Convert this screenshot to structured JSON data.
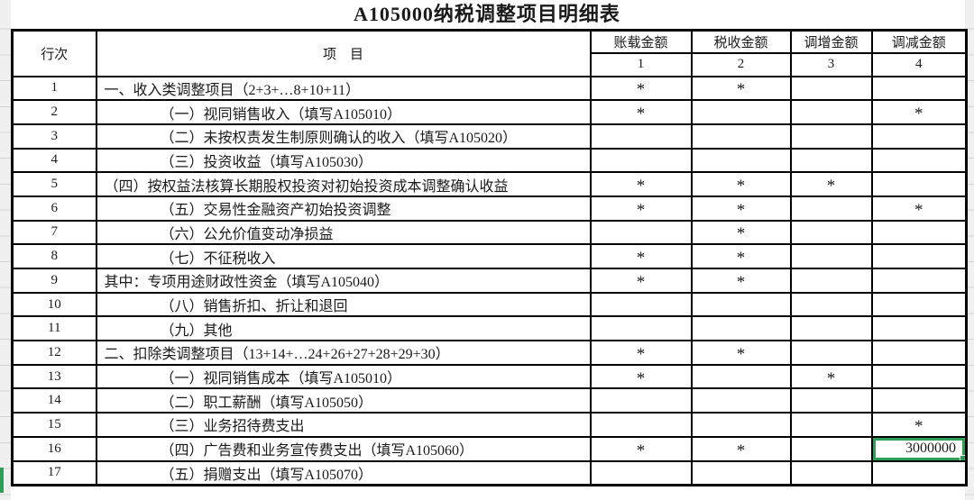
{
  "title": "A105000纳税调整项目明细表",
  "colors": {
    "selection_green": "#2e9e57",
    "table_border": "#000000",
    "edge_strip": "#f0f0f0"
  },
  "table": {
    "headers": {
      "line_no": "行次",
      "item": "项　目",
      "cols": [
        "账载金额",
        "税收金额",
        "调增金额",
        "调减金额"
      ],
      "col_nums": [
        "1",
        "2",
        "3",
        "4"
      ]
    },
    "rows": [
      {
        "line": "1",
        "item": "一、收入类调整项目（2+3+…8+10+11）",
        "indent": false,
        "c1": "*",
        "c2": "*",
        "c3": "",
        "c4": ""
      },
      {
        "line": "2",
        "item": "（一）视同销售收入（填写A105010）",
        "indent": true,
        "c1": "*",
        "c2": "",
        "c3": "",
        "c4": "*"
      },
      {
        "line": "3",
        "item": "（二）未按权责发生制原则确认的收入（填写A105020）",
        "indent": true,
        "c1": "",
        "c2": "",
        "c3": "",
        "c4": ""
      },
      {
        "line": "4",
        "item": "（三）投资收益（填写A105030）",
        "indent": true,
        "c1": "",
        "c2": "",
        "c3": "",
        "c4": ""
      },
      {
        "line": "5",
        "item": "（四）按权益法核算长期股权投资对初始投资成本调整确认收益",
        "indent": false,
        "c1": "*",
        "c2": "*",
        "c3": "*",
        "c4": ""
      },
      {
        "line": "6",
        "item": "（五）交易性金融资产初始投资调整",
        "indent": true,
        "c1": "*",
        "c2": "*",
        "c3": "",
        "c4": "*"
      },
      {
        "line": "7",
        "item": "（六）公允价值变动净损益",
        "indent": true,
        "c1": "",
        "c2": "*",
        "c3": "",
        "c4": ""
      },
      {
        "line": "8",
        "item": "（七）不征税收入",
        "indent": true,
        "c1": "*",
        "c2": "*",
        "c3": "",
        "c4": ""
      },
      {
        "line": "9",
        "item": "其中：专项用途财政性资金（填写A105040）",
        "indent": false,
        "c1": "*",
        "c2": "*",
        "c3": "",
        "c4": ""
      },
      {
        "line": "10",
        "item": "（八）销售折扣、折让和退回",
        "indent": true,
        "c1": "",
        "c2": "",
        "c3": "",
        "c4": ""
      },
      {
        "line": "11",
        "item": "（九）其他",
        "indent": true,
        "c1": "",
        "c2": "",
        "c3": "",
        "c4": ""
      },
      {
        "line": "12",
        "item": "二、扣除类调整项目（13+14+…24+26+27+28+29+30）",
        "indent": false,
        "c1": "*",
        "c2": "*",
        "c3": "",
        "c4": ""
      },
      {
        "line": "13",
        "item": "（一）视同销售成本（填写A105010）",
        "indent": true,
        "c1": "*",
        "c2": "",
        "c3": "*",
        "c4": ""
      },
      {
        "line": "14",
        "item": "（二）职工薪酬（填写A105050）",
        "indent": true,
        "c1": "",
        "c2": "",
        "c3": "",
        "c4": ""
      },
      {
        "line": "15",
        "item": "（三）业务招待费支出",
        "indent": true,
        "c1": "",
        "c2": "",
        "c3": "",
        "c4": "*"
      },
      {
        "line": "16",
        "item": "（四）广告费和业务宣传费支出（填写A105060）",
        "indent": true,
        "c1": "*",
        "c2": "*",
        "c3": "",
        "c4": "3000000",
        "selected": "c4"
      },
      {
        "line": "17",
        "item": "（五）捐赠支出（填写A105070）",
        "indent": true,
        "c1": "",
        "c2": "",
        "c3": "",
        "c4": ""
      }
    ]
  }
}
